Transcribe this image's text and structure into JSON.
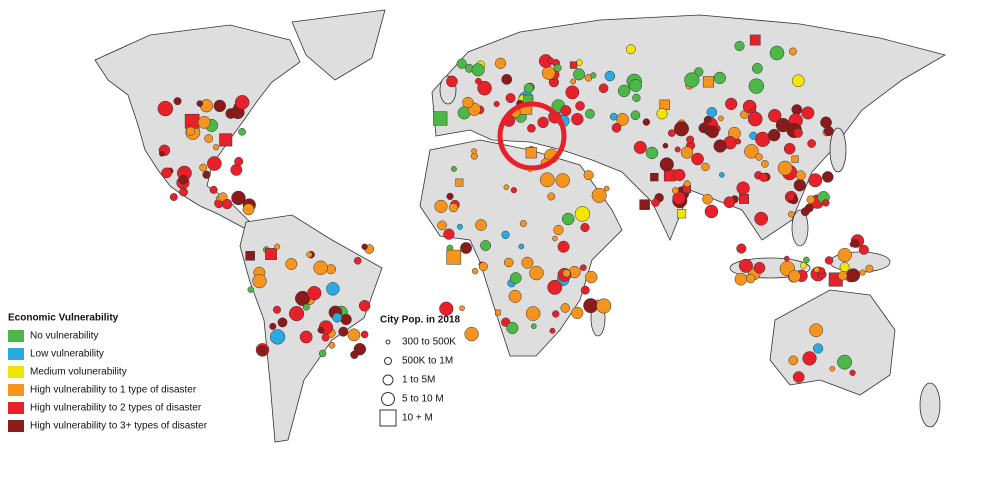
{
  "legend": {
    "title": "Economic Vulnerability",
    "items": [
      {
        "label": "No vulnerability",
        "color": "#4db848"
      },
      {
        "label": "Low vulnerability",
        "color": "#29abe2"
      },
      {
        "label": "Medium volunerability",
        "color": "#f2e500"
      },
      {
        "label": "High vulnerability to 1 type of disaster",
        "color": "#f7941d"
      },
      {
        "label": "High vulnerability to 2 types of disaster",
        "color": "#e8202a"
      },
      {
        "label": "High vulnerability to 3+ types of disaster",
        "color": "#8b1a1a"
      }
    ]
  },
  "size_legend": {
    "title": "City Pop. in 2018",
    "items": [
      "300 to 500K",
      "500K to 1M",
      "1 to 5M",
      "5 to 10 M",
      "10 + M"
    ]
  }
}
